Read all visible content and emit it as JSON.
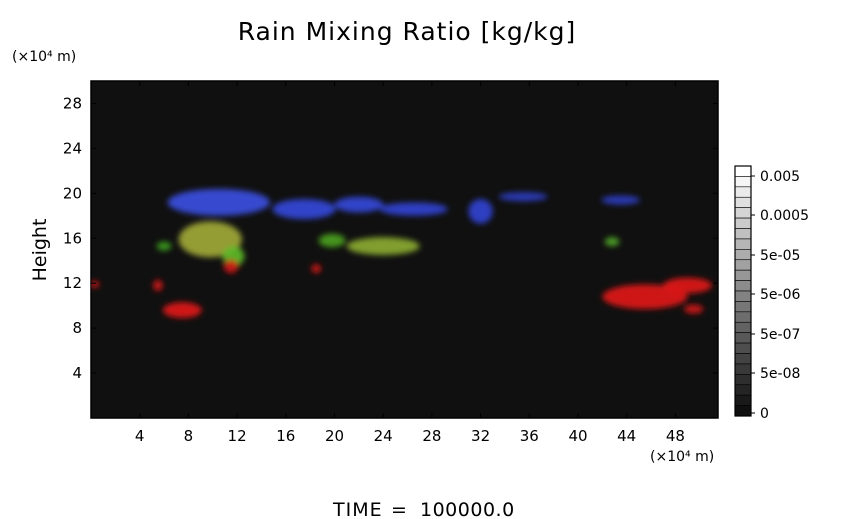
{
  "chart_data": {
    "type": "heatmap",
    "title": "Rain Mixing Ratio [kg/kg]",
    "ylabel": "Height",
    "y_unit": "(×10⁴ m)",
    "x_unit": "(×10⁴ m)",
    "xlim": [
      0,
      51.5
    ],
    "ylim": [
      0,
      30
    ],
    "xticks": [
      4,
      8,
      12,
      16,
      20,
      24,
      28,
      32,
      36,
      40,
      44,
      48
    ],
    "yticks": [
      4,
      8,
      12,
      16,
      20,
      24,
      28
    ],
    "background_color": "#101010",
    "colorbar": {
      "labels": [
        "0.005",
        "0.0005",
        "5e-05",
        "5e-06",
        "5e-07",
        "5e-08",
        "0"
      ],
      "scale": "log"
    },
    "regions": [
      {
        "color": "#3a4fe0",
        "cx": 10.5,
        "cy": 19.2,
        "rx": 4.2,
        "ry": 1.2
      },
      {
        "color": "#3346d8",
        "cx": 17.5,
        "cy": 18.6,
        "rx": 2.6,
        "ry": 0.9
      },
      {
        "color": "#3346d8",
        "cx": 22.0,
        "cy": 19.0,
        "rx": 2.0,
        "ry": 0.7
      },
      {
        "color": "#2f42d0",
        "cx": 26.5,
        "cy": 18.6,
        "rx": 2.8,
        "ry": 0.6
      },
      {
        "color": "#2f42d0",
        "cx": 32.0,
        "cy": 18.4,
        "rx": 1.0,
        "ry": 1.1
      },
      {
        "color": "#2b3cc0",
        "cx": 35.5,
        "cy": 19.7,
        "rx": 2.0,
        "ry": 0.4
      },
      {
        "color": "#2b3cc0",
        "cx": 43.5,
        "cy": 19.4,
        "rx": 1.6,
        "ry": 0.4
      },
      {
        "color": "#a0a838",
        "cx": 9.8,
        "cy": 15.9,
        "rx": 2.6,
        "ry": 1.6
      },
      {
        "color": "#5cba28",
        "cx": 11.7,
        "cy": 14.4,
        "rx": 0.9,
        "ry": 0.9
      },
      {
        "color": "#8aaa30",
        "cx": 24.0,
        "cy": 15.3,
        "rx": 3.0,
        "ry": 0.8
      },
      {
        "color": "#4aa020",
        "cx": 19.8,
        "cy": 15.8,
        "rx": 1.1,
        "ry": 0.6
      },
      {
        "color": "#3da020",
        "cx": 6.0,
        "cy": 15.3,
        "rx": 0.6,
        "ry": 0.4
      },
      {
        "color": "#50a828",
        "cx": 42.8,
        "cy": 15.7,
        "rx": 0.6,
        "ry": 0.4
      },
      {
        "color": "#e01818",
        "cx": 7.5,
        "cy": 9.6,
        "rx": 1.6,
        "ry": 0.7
      },
      {
        "color": "#d01414",
        "cx": 11.5,
        "cy": 13.5,
        "rx": 0.6,
        "ry": 0.6
      },
      {
        "color": "#d01414",
        "cx": 18.5,
        "cy": 13.3,
        "rx": 0.4,
        "ry": 0.4
      },
      {
        "color": "#d01414",
        "cx": 5.5,
        "cy": 11.8,
        "rx": 0.4,
        "ry": 0.5
      },
      {
        "color": "#e01818",
        "cx": 45.5,
        "cy": 10.8,
        "rx": 3.5,
        "ry": 1.1
      },
      {
        "color": "#e01818",
        "cx": 49.0,
        "cy": 11.8,
        "rx": 2.0,
        "ry": 0.7
      },
      {
        "color": "#d01414",
        "cx": 49.5,
        "cy": 9.7,
        "rx": 0.8,
        "ry": 0.4
      },
      {
        "color": "#d01414",
        "cx": 0.3,
        "cy": 11.9,
        "rx": 0.4,
        "ry": 0.3
      }
    ]
  },
  "footer": {
    "time_label": "TIME",
    "equals": "=",
    "time_value": "100000.0"
  }
}
